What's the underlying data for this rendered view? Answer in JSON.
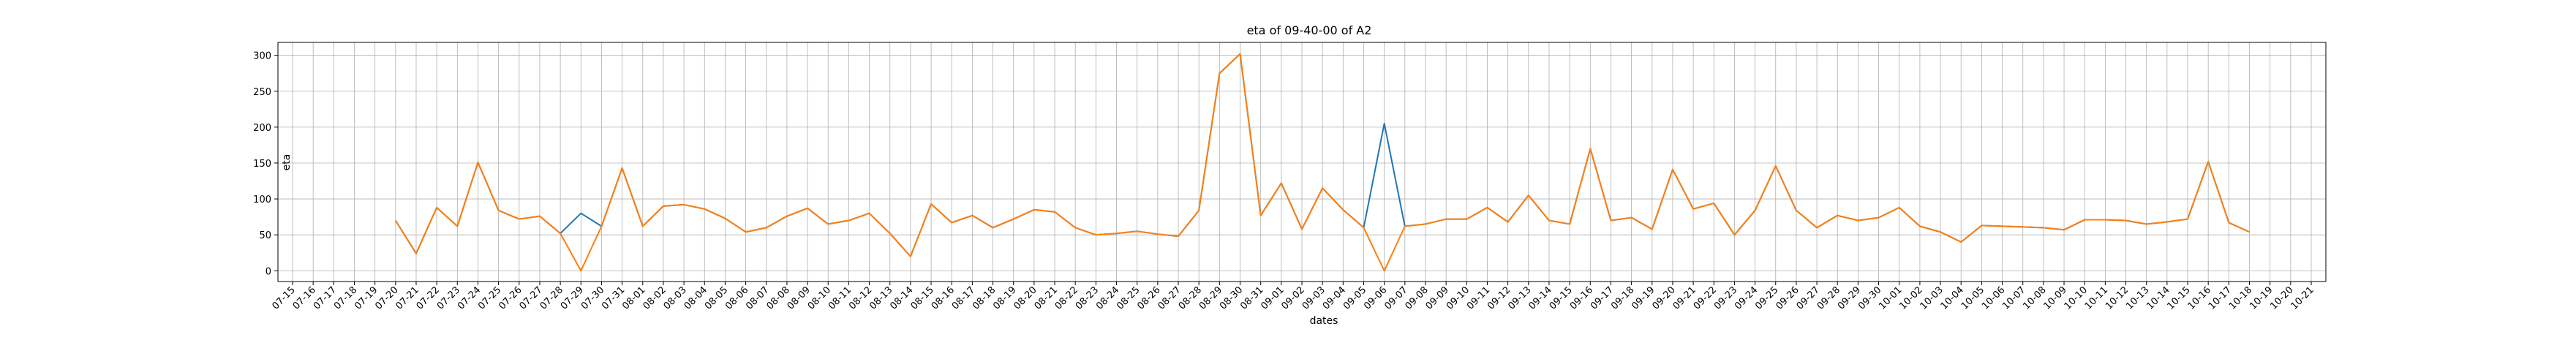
{
  "chart_data": {
    "type": "line",
    "title": "eta of 09-40-00 of A2",
    "xlabel": "dates",
    "ylabel": "eta",
    "ylim": [
      -15,
      318
    ],
    "yticks": [
      0,
      50,
      100,
      150,
      200,
      250,
      300
    ],
    "grid": true,
    "categories": [
      "07-15",
      "07-16",
      "07-17",
      "07-18",
      "07-19",
      "07-20",
      "07-21",
      "07-22",
      "07-23",
      "07-24",
      "07-25",
      "07-26",
      "07-27",
      "07-28",
      "07-29",
      "07-30",
      "07-31",
      "08-01",
      "08-02",
      "08-03",
      "08-04",
      "08-05",
      "08-06",
      "08-07",
      "08-08",
      "08-09",
      "08-10",
      "08-11",
      "08-12",
      "08-13",
      "08-14",
      "08-15",
      "08-16",
      "08-17",
      "08-18",
      "08-19",
      "08-20",
      "08-21",
      "08-22",
      "08-23",
      "08-24",
      "08-25",
      "08-26",
      "08-27",
      "08-28",
      "08-29",
      "08-30",
      "08-31",
      "09-01",
      "09-02",
      "09-03",
      "09-04",
      "09-05",
      "09-06",
      "09-07",
      "09-08",
      "09-09",
      "09-10",
      "09-11",
      "09-12",
      "09-13",
      "09-14",
      "09-15",
      "09-16",
      "09-17",
      "09-18",
      "09-19",
      "09-20",
      "09-21",
      "09-22",
      "09-23",
      "09-24",
      "09-25",
      "09-26",
      "09-27",
      "09-28",
      "09-29",
      "09-30",
      "10-01",
      "10-02",
      "10-03",
      "10-04",
      "10-05",
      "10-06",
      "10-07",
      "10-08",
      "10-09",
      "10-10",
      "10-11",
      "10-12",
      "10-13",
      "10-14",
      "10-15",
      "10-16",
      "10-17",
      "10-18",
      "10-19",
      "10-20",
      "10-21"
    ],
    "series": [
      {
        "color": "#1f77b4",
        "values": [
          null,
          null,
          null,
          null,
          null,
          70,
          24,
          88,
          62,
          151,
          84,
          72,
          76,
          52,
          80,
          62,
          143,
          62,
          90,
          92,
          86,
          73,
          54,
          60,
          76,
          87,
          65,
          70,
          80,
          52,
          20,
          93,
          67,
          77,
          60,
          72,
          85,
          82,
          60,
          50,
          52,
          55,
          51,
          48,
          84,
          275,
          302,
          77,
          122,
          58,
          115,
          85,
          60,
          205,
          62,
          65,
          72,
          72,
          88,
          68,
          105,
          70,
          65,
          170,
          70,
          74,
          58,
          141,
          86,
          94,
          50,
          84,
          146,
          84,
          60,
          77,
          70,
          74,
          88,
          62,
          54,
          40,
          63,
          62,
          61,
          60,
          57,
          71,
          71,
          70,
          65,
          68,
          72,
          152,
          67,
          54,
          null,
          null,
          null
        ]
      },
      {
        "color": "#ff7f0e",
        "values": [
          null,
          null,
          null,
          null,
          null,
          70,
          24,
          88,
          62,
          151,
          84,
          72,
          76,
          52,
          0,
          62,
          143,
          62,
          90,
          92,
          86,
          73,
          54,
          60,
          76,
          87,
          65,
          70,
          80,
          52,
          20,
          93,
          67,
          77,
          60,
          72,
          85,
          82,
          60,
          50,
          52,
          55,
          51,
          48,
          84,
          275,
          302,
          77,
          122,
          58,
          115,
          85,
          60,
          0,
          62,
          65,
          72,
          72,
          88,
          68,
          105,
          70,
          65,
          170,
          70,
          74,
          58,
          141,
          86,
          94,
          50,
          84,
          146,
          84,
          60,
          77,
          70,
          74,
          88,
          62,
          54,
          40,
          63,
          62,
          61,
          60,
          57,
          71,
          71,
          70,
          65,
          68,
          72,
          152,
          67,
          54,
          null,
          null,
          null
        ]
      }
    ]
  }
}
